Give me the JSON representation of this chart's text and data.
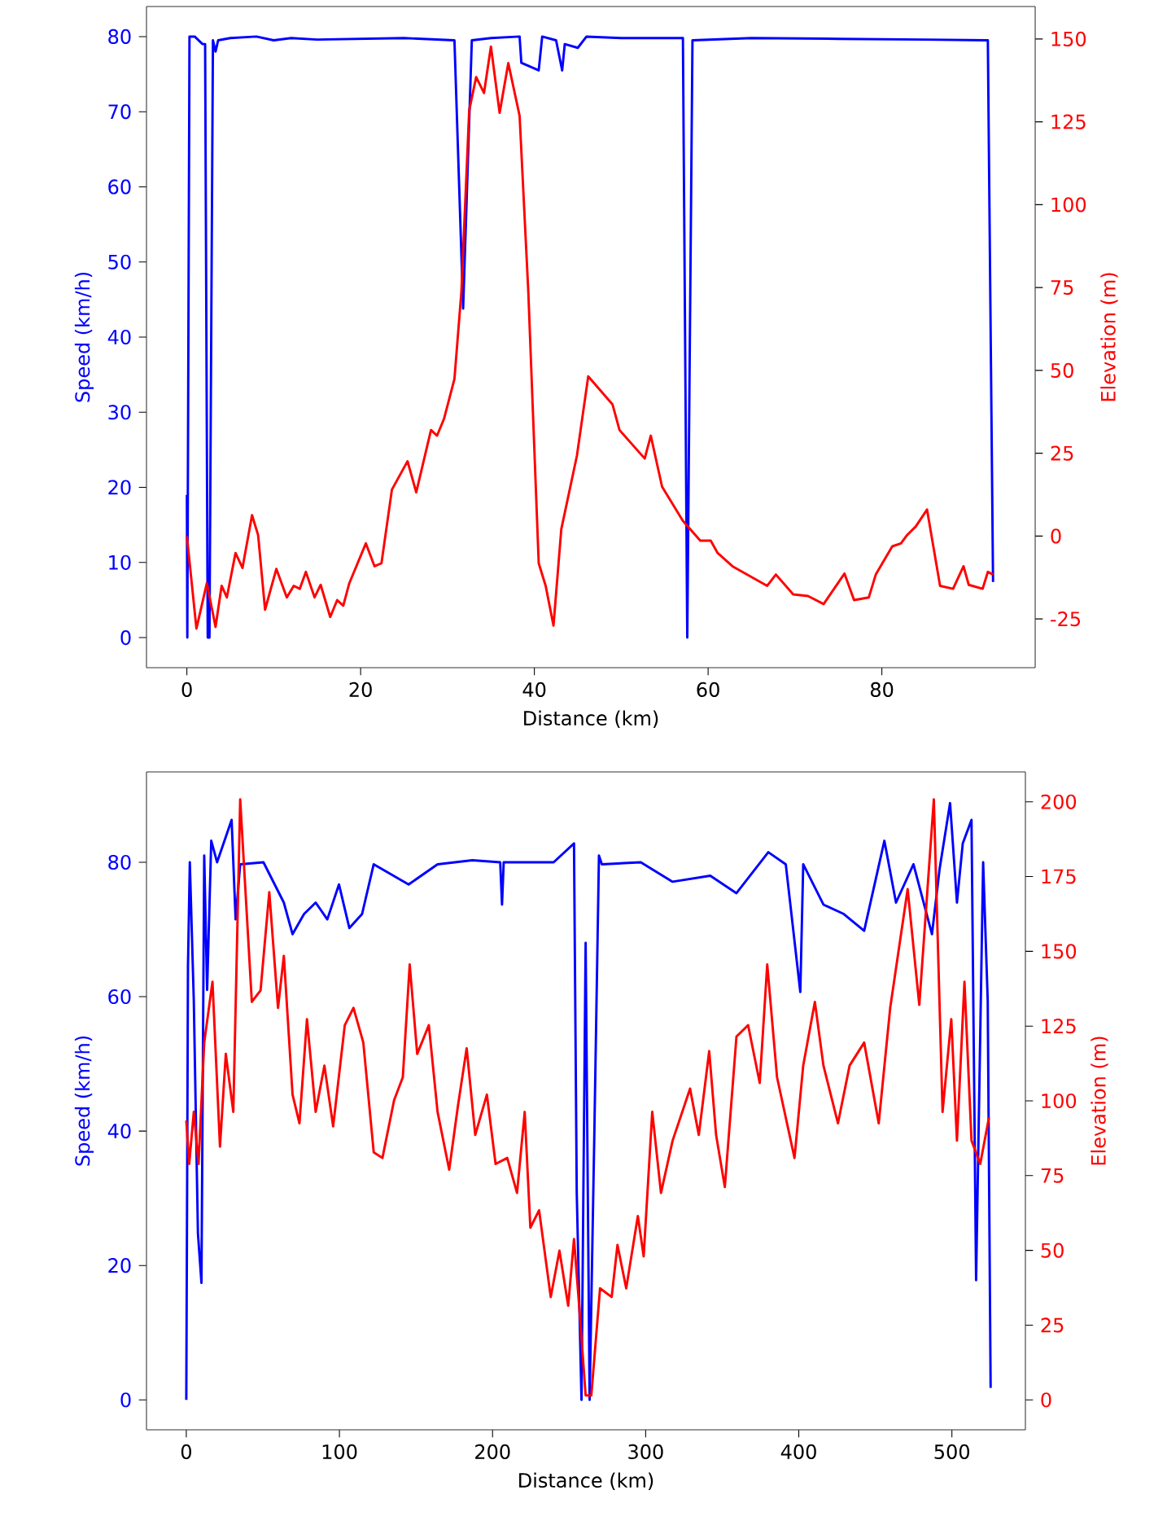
{
  "chart_data": [
    {
      "type": "line",
      "xlabel": "Distance (km)",
      "ylabel": "Speed (km/h)",
      "y2label": "Elevation (m)",
      "xlim": [
        -4.65,
        97.65
      ],
      "xticks": [
        0,
        20,
        40,
        60,
        80
      ],
      "ylim": [
        -4,
        84
      ],
      "yticks": [
        0,
        10,
        20,
        30,
        40,
        50,
        60,
        70,
        80
      ],
      "y2lim": [
        -39.7,
        159.8
      ],
      "y2ticks": [
        -25,
        0,
        25,
        50,
        75,
        100,
        125,
        150
      ],
      "series": [
        {
          "color": "#0000ff",
          "x": [
            0,
            0.05,
            0.3,
            0.9,
            1.8,
            2.1,
            2.4,
            2.6,
            3.0,
            3.3,
            3.6,
            5,
            8,
            10,
            12,
            15,
            20,
            25,
            30.8,
            31.8,
            32.8,
            35,
            38.3,
            38.5,
            40.5,
            40.9,
            42.5,
            43.2,
            43.5,
            45,
            46,
            50,
            57.1,
            57.6,
            58.2,
            65,
            75,
            85,
            92.2,
            92.8
          ],
          "values": [
            19,
            0,
            80,
            80,
            79,
            79,
            0,
            0,
            79.5,
            78,
            79.5,
            79.8,
            80,
            79.5,
            79.8,
            79.6,
            79.7,
            79.8,
            79.5,
            43.8,
            79.5,
            79.8,
            80,
            76.5,
            75.5,
            80,
            79.5,
            75.5,
            79,
            78.5,
            80,
            79.8,
            79.8,
            0,
            79.5,
            79.8,
            79.7,
            79.6,
            79.5,
            7.4
          ]
        },
        {
          "color": "#ff0000",
          "axis": "y2",
          "x": [
            0,
            1.1,
            2.3,
            3.3,
            4.0,
            4.6,
            5.6,
            6.4,
            7.5,
            8.2,
            9.0,
            10.3,
            11.5,
            12.3,
            13.0,
            13.7,
            14.7,
            15.4,
            16.5,
            17.3,
            18.0,
            18.7,
            20.6,
            21.6,
            22.4,
            23.6,
            25.4,
            26.4,
            28.1,
            28.8,
            29.6,
            30.8,
            31.6,
            32.5,
            33.3,
            34.2,
            35.0,
            36.0,
            37.0,
            38.3,
            39.3,
            40.5,
            41.3,
            42.2,
            43.1,
            44.9,
            46.2,
            49.0,
            49.8,
            52.7,
            53.4,
            54.7,
            57.1,
            59.1,
            60.3,
            61.1,
            62.8,
            66.8,
            67.8,
            69.8,
            71.5,
            73.3,
            75.7,
            76.8,
            78.5,
            79.3,
            81.2,
            82.2,
            82.9,
            83.9,
            85.2,
            86.7,
            88.2,
            89.4,
            90.0,
            91.6,
            92.2,
            92.8
          ],
          "values": [
            0,
            -27.9,
            -14.2,
            -27.4,
            -15.0,
            -18.5,
            -5.1,
            -9.6,
            6.3,
            0.3,
            -22.2,
            -9.9,
            -18.5,
            -15.0,
            -15.9,
            -10.8,
            -18.5,
            -14.7,
            -24.4,
            -19.3,
            -21.0,
            -14.2,
            -2.2,
            -9.1,
            -8.2,
            14.0,
            22.6,
            13.2,
            32.0,
            30.3,
            35.4,
            47.4,
            73.8,
            128.5,
            138.5,
            133.7,
            147.7,
            127.7,
            142.7,
            126.8,
            73.8,
            -8.2,
            -15.0,
            -27.0,
            2.1,
            24.3,
            48.2,
            39.7,
            32.0,
            23.4,
            30.3,
            14.9,
            4.6,
            -1.4,
            -1.4,
            -5.1,
            -9.1,
            -15.0,
            -11.6,
            -17.6,
            -18.1,
            -20.5,
            -11.3,
            -19.3,
            -18.5,
            -11.6,
            -3.1,
            -2.2,
            0.3,
            2.9,
            8.0,
            -15.0,
            -15.9,
            -9.1,
            -14.7,
            -15.9,
            -10.8,
            -11.6
          ]
        }
      ]
    },
    {
      "type": "line",
      "xlabel": "Distance (km)",
      "ylabel": "Speed (km/h)",
      "y2label": "Elevation (m)",
      "xlim": [
        -26,
        548
      ],
      "xticks": [
        0,
        100,
        200,
        300,
        400,
        500
      ],
      "ylim": [
        -4.45,
        93.45
      ],
      "yticks": [
        0,
        20,
        40,
        60,
        80
      ],
      "y2lim": [
        -10,
        210
      ],
      "y2ticks": [
        0,
        25,
        50,
        75,
        100,
        125,
        150,
        175,
        200
      ],
      "series": [
        {
          "color": "#0000ff",
          "x": [
            0,
            1.1,
            2.3,
            4.9,
            7.6,
            9.9,
            11.7,
            13.6,
            16.3,
            20.1,
            29.6,
            32.2,
            35.2,
            50.4,
            63.7,
            69.4,
            76.9,
            84.5,
            92.1,
            99.7,
            106.5,
            114.8,
            122.4,
            145.2,
            164.1,
            186.8,
            205,
            206.2,
            207.3,
            239.9,
            253.2,
            255,
            258.1,
            260.8,
            263.4,
            266.4,
            269.5,
            271.4,
            296.8,
            317.6,
            342.2,
            359.3,
            380.1,
            391.5,
            401,
            402.9,
            416.1,
            429.4,
            442.7,
            455.9,
            463.5,
            474.9,
            487,
            491.9,
            498.8,
            503.3,
            507.1,
            512.8,
            515.8,
            520.4,
            523.4,
            525.3
          ],
          "values": [
            0,
            64.6,
            80,
            59.4,
            24.8,
            17.4,
            81,
            61,
            83.2,
            80,
            86.3,
            71.5,
            79.7,
            80,
            74,
            69.3,
            72.3,
            74,
            71.5,
            76.7,
            70.2,
            72.3,
            79.7,
            76.7,
            79.7,
            80.3,
            80,
            73.7,
            80,
            80,
            82.8,
            30.8,
            0,
            68,
            0,
            38.6,
            81,
            79.7,
            80,
            77.1,
            78,
            75.4,
            81.5,
            79.7,
            60.7,
            79.7,
            73.7,
            72.3,
            69.8,
            83.2,
            74,
            79.7,
            69.3,
            78.9,
            88.8,
            74,
            82.8,
            86.3,
            17.8,
            80,
            59.4,
            1.8
          ]
        },
        {
          "color": "#ff0000",
          "axis": "y2",
          "x": [
            0,
            1.9,
            4.9,
            8,
            11.7,
            17.1,
            22,
            25.8,
            30.7,
            35.2,
            42.8,
            48.5,
            54.2,
            59.9,
            63.7,
            69.4,
            73.9,
            78.8,
            84.5,
            90.2,
            95.9,
            103.5,
            109.2,
            115.6,
            122.4,
            128.1,
            135.7,
            141.4,
            145.9,
            150.8,
            158.4,
            164.1,
            171.7,
            177.4,
            183.1,
            188.7,
            196.3,
            202,
            209.6,
            216,
            221,
            224.7,
            230.4,
            238,
            243.7,
            249.4,
            253.2,
            257,
            260.8,
            264.5,
            270.2,
            277.8,
            281.6,
            287.3,
            294.9,
            298.7,
            304.3,
            310,
            317.6,
            329,
            334.7,
            341.5,
            346,
            351.7,
            359.3,
            366.9,
            374.5,
            379.4,
            385.8,
            397.2,
            402.9,
            410.5,
            416.1,
            425.6,
            433.2,
            442.7,
            452.2,
            459.7,
            471.1,
            478.7,
            488.2,
            493.9,
            499.6,
            503.3,
            508.2,
            512.8,
            518.5,
            524.2
          ],
          "values": [
            93.4,
            78.9,
            96.3,
            78.9,
            119.5,
            139.8,
            84.7,
            115.7,
            96.3,
            200.8,
            133.1,
            136.9,
            169.8,
            131.1,
            148.5,
            102.1,
            92.5,
            127.3,
            96.3,
            111.8,
            91.5,
            125.3,
            131.1,
            119.5,
            82.8,
            80.9,
            100.2,
            107.9,
            145.6,
            115.7,
            125.3,
            96.3,
            77,
            98.3,
            117.6,
            88.6,
            102.1,
            78.9,
            80.9,
            69.2,
            96.3,
            57.6,
            63.4,
            34.4,
            49.9,
            31.5,
            53.8,
            28.6,
            1.5,
            1.5,
            37.3,
            34.4,
            51.8,
            37.3,
            61.5,
            48,
            96.3,
            69.2,
            86.7,
            104.1,
            88.6,
            116.6,
            88.6,
            71.2,
            121.5,
            125.3,
            106,
            145.6,
            107.9,
            80.9,
            111.8,
            133.1,
            111.8,
            92.5,
            111.8,
            119.5,
            92.5,
            131.1,
            170.8,
            132.1,
            200.8,
            96.3,
            127.3,
            86.7,
            139.8,
            86.7,
            78.9,
            94.4
          ]
        }
      ]
    }
  ]
}
